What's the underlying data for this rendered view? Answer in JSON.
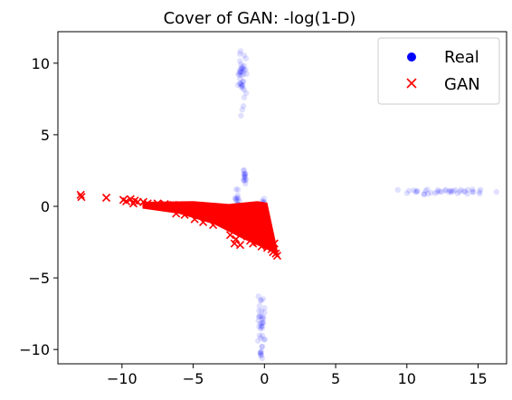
{
  "chart_data": {
    "type": "scatter",
    "title": "Cover of GAN: -log(1-D)",
    "xlabel": "",
    "ylabel": "",
    "xlim": [
      -14.5,
      17
    ],
    "ylim": [
      -11,
      12.2
    ],
    "xticks": [
      -10,
      -5,
      0,
      5,
      10,
      15
    ],
    "yticks": [
      -10,
      -5,
      0,
      5,
      10
    ],
    "xtick_labels": [
      "−10",
      "−5",
      "0",
      "5",
      "10",
      "15"
    ],
    "ytick_labels": [
      "−10",
      "−5",
      "0",
      "5",
      "10"
    ],
    "grid": false,
    "legend_position": "top-right",
    "series": [
      {
        "name": "Real",
        "marker": "circle",
        "color": "#0000ff",
        "clusters": [
          {
            "cx": -1.6,
            "cy": 9.0,
            "spread_x": 0.12,
            "spread_y": 0.9,
            "count": 40
          },
          {
            "cx": 13.0,
            "cy": 1.0,
            "spread_x": 1.4,
            "spread_y": 0.1,
            "count": 40
          },
          {
            "cx": -0.2,
            "cy": -8.4,
            "spread_x": 0.12,
            "spread_y": 0.9,
            "count": 40
          },
          {
            "cx": -1.4,
            "cy": 2.0,
            "spread_x": 0.06,
            "spread_y": 0.25,
            "count": 14
          },
          {
            "cx": -1.9,
            "cy": 0.4,
            "spread_x": 0.08,
            "spread_y": 0.35,
            "count": 14
          },
          {
            "cx": -0.1,
            "cy": 0.1,
            "spread_x": 0.06,
            "spread_y": 0.3,
            "count": 12
          },
          {
            "cx": -3.0,
            "cy": -1.1,
            "spread_x": 0.15,
            "spread_y": 0.08,
            "count": 8
          }
        ]
      },
      {
        "name": "GAN",
        "marker": "x",
        "color": "#ff0000",
        "points": [
          [
            -12.9,
            0.8
          ],
          [
            -12.85,
            0.65
          ],
          [
            -11.1,
            0.6
          ],
          [
            -9.9,
            0.45
          ],
          [
            -9.7,
            0.35
          ],
          [
            -9.4,
            0.5
          ],
          [
            -9.1,
            0.4
          ],
          [
            -8.9,
            0.3
          ],
          [
            -9.2,
            0.2
          ],
          [
            -8.5,
            0.3
          ],
          [
            -8.2,
            0.2
          ],
          [
            -7.9,
            0.1
          ],
          [
            -7.5,
            0.2
          ],
          [
            -7.3,
            0.0
          ],
          [
            -7.0,
            0.15
          ],
          [
            -6.7,
            -0.1
          ],
          [
            -6.4,
            0.1
          ],
          [
            -6.1,
            -0.2
          ],
          [
            -5.8,
            0.0
          ],
          [
            -5.5,
            -0.3
          ],
          [
            -5.2,
            -0.1
          ],
          [
            -5.0,
            -0.4
          ],
          [
            -4.7,
            -0.2
          ],
          [
            -4.4,
            -0.6
          ],
          [
            -4.1,
            -0.4
          ],
          [
            -3.8,
            -0.8
          ],
          [
            -3.5,
            -0.6
          ],
          [
            -3.2,
            -0.9
          ],
          [
            -2.9,
            -1.0
          ],
          [
            -2.6,
            -1.2
          ],
          [
            -2.3,
            -1.3
          ],
          [
            -2.0,
            -1.5
          ],
          [
            -1.8,
            -1.7
          ],
          [
            -1.6,
            -1.9
          ],
          [
            -2.0,
            -2.3
          ],
          [
            -1.2,
            -2.1
          ],
          [
            -1.0,
            -2.4
          ],
          [
            -0.8,
            -2.6
          ],
          [
            -0.5,
            -2.5
          ],
          [
            -0.2,
            -2.8
          ],
          [
            0.2,
            -2.9
          ],
          [
            0.5,
            -3.0
          ],
          [
            0.6,
            -3.2
          ],
          [
            0.8,
            -3.3
          ],
          [
            0.9,
            -3.45
          ],
          [
            0.7,
            -2.6
          ],
          [
            0.4,
            -2.2
          ],
          [
            -1.7,
            -2.7
          ],
          [
            -2.1,
            -2.6
          ],
          [
            -2.4,
            -2.0
          ],
          [
            -6.2,
            -0.5
          ],
          [
            -5.6,
            -0.6
          ],
          [
            -4.9,
            -0.9
          ],
          [
            -4.3,
            -1.1
          ],
          [
            -3.6,
            -1.3
          ]
        ],
        "body_polygon": [
          [
            -8.5,
            0.25
          ],
          [
            -5,
            0.3
          ],
          [
            -2.5,
            0.1
          ],
          [
            -0.5,
            0.3
          ],
          [
            0.15,
            0.2
          ],
          [
            0.8,
            -2.8
          ],
          [
            0.9,
            -3.3
          ],
          [
            0.3,
            -3.0
          ],
          [
            -1.5,
            -2.2
          ],
          [
            -3.5,
            -1.2
          ],
          [
            -6,
            -0.45
          ],
          [
            -8.5,
            -0.1
          ]
        ]
      }
    ]
  },
  "legend": {
    "items": [
      {
        "label": "Real",
        "color": "#0000ff"
      },
      {
        "label": "GAN",
        "color": "#ff0000"
      }
    ]
  }
}
